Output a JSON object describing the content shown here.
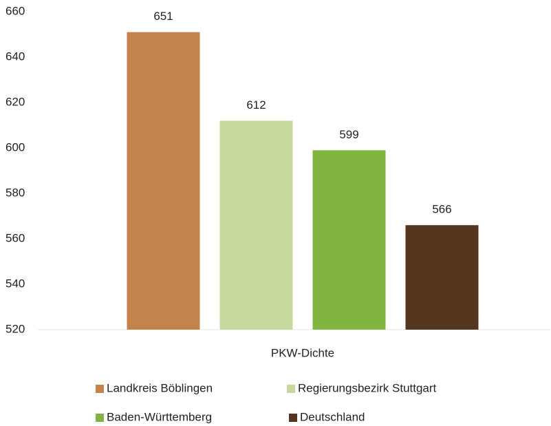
{
  "chart_data": {
    "type": "bar",
    "categories": [
      "PKW-Dichte"
    ],
    "series": [
      {
        "name": "Landkreis Böblingen",
        "color": "#c5834c",
        "values": [
          651
        ]
      },
      {
        "name": "Regierungsbezirk Stuttgart",
        "color": "#c6d89e",
        "values": [
          612
        ]
      },
      {
        "name": "Baden-Württemberg",
        "color": "#82b440",
        "values": [
          599
        ]
      },
      {
        "name": "Deutschland",
        "color": "#56351e",
        "values": [
          566
        ]
      }
    ],
    "ylim": [
      520,
      660
    ],
    "yticks": [
      520,
      540,
      560,
      580,
      600,
      620,
      640,
      660
    ],
    "grid": false,
    "legend": "bottom"
  }
}
